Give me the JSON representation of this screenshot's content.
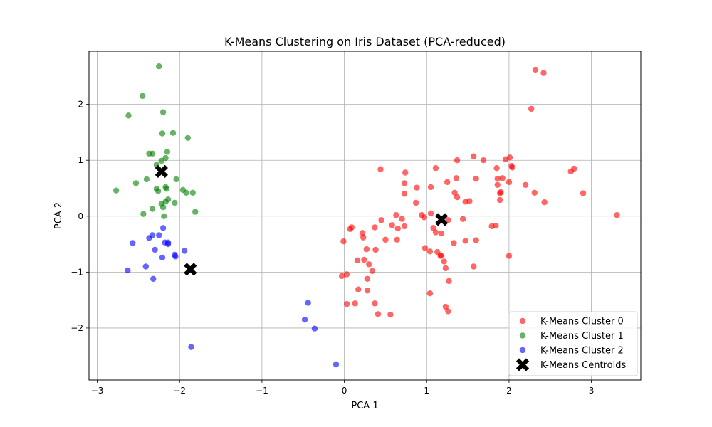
{
  "chart_data": {
    "type": "scatter",
    "title": "K-Means Clustering on Iris Dataset (PCA-reduced)",
    "xlabel": "PCA 1",
    "ylabel": "PCA 2",
    "xlim": [
      -3.1,
      3.6
    ],
    "ylim": [
      -2.93,
      2.95
    ],
    "xticks": [
      -3,
      -2,
      -1,
      0,
      1,
      2,
      3
    ],
    "yticks": [
      -2,
      -1,
      0,
      1,
      2
    ],
    "xtick_labels": [
      "−3",
      "−2",
      "−1",
      "0",
      "1",
      "2",
      "3"
    ],
    "ytick_labels": [
      "−2",
      "−1",
      "0",
      "1",
      "2"
    ],
    "grid": true,
    "legend_position": "lower-right",
    "series": [
      {
        "name": "K-Means Cluster 0",
        "color": "#ff0000",
        "marker": "circle",
        "points": [
          [
            2.32,
            2.62
          ],
          [
            2.42,
            2.56
          ],
          [
            2.27,
            1.92
          ],
          [
            1.57,
            1.07
          ],
          [
            1.37,
            1.0
          ],
          [
            1.69,
            1.0
          ],
          [
            1.96,
            1.02
          ],
          [
            2.01,
            1.05
          ],
          [
            2.03,
            0.9
          ],
          [
            2.04,
            0.87
          ],
          [
            0.44,
            0.84
          ],
          [
            0.74,
            0.78
          ],
          [
            1.11,
            0.86
          ],
          [
            1.85,
            0.86
          ],
          [
            2.79,
            0.85
          ],
          [
            2.75,
            0.8
          ],
          [
            1.36,
            0.68
          ],
          [
            1.6,
            0.67
          ],
          [
            1.86,
            0.67
          ],
          [
            1.92,
            0.68
          ],
          [
            1.25,
            0.61
          ],
          [
            2.0,
            0.61
          ],
          [
            0.73,
            0.59
          ],
          [
            1.86,
            0.56
          ],
          [
            2.2,
            0.56
          ],
          [
            0.88,
            0.51
          ],
          [
            1.05,
            0.52
          ],
          [
            0.73,
            0.4
          ],
          [
            1.34,
            0.42
          ],
          [
            1.89,
            0.41
          ],
          [
            1.9,
            0.43
          ],
          [
            2.31,
            0.42
          ],
          [
            2.9,
            0.41
          ],
          [
            1.37,
            0.34
          ],
          [
            0.87,
            0.24
          ],
          [
            1.89,
            0.29
          ],
          [
            1.47,
            0.26
          ],
          [
            1.52,
            0.27
          ],
          [
            2.43,
            0.25
          ],
          [
            0.63,
            0.02
          ],
          [
            0.94,
            0.02
          ],
          [
            1.05,
            0.05
          ],
          [
            0.97,
            -0.02
          ],
          [
            3.31,
            0.02
          ],
          [
            0.45,
            -0.07
          ],
          [
            0.7,
            -0.05
          ],
          [
            1.26,
            -0.07
          ],
          [
            1.44,
            -0.05
          ],
          [
            0.09,
            -0.2
          ],
          [
            0.07,
            -0.23
          ],
          [
            0.37,
            -0.2
          ],
          [
            0.58,
            -0.16
          ],
          [
            0.65,
            -0.22
          ],
          [
            0.73,
            -0.18
          ],
          [
            1.08,
            -0.21
          ],
          [
            1.11,
            -0.29
          ],
          [
            1.18,
            -0.31
          ],
          [
            1.79,
            -0.18
          ],
          [
            1.84,
            -0.17
          ],
          [
            0.22,
            -0.3
          ],
          [
            0.23,
            -0.38
          ],
          [
            0.5,
            -0.42
          ],
          [
            0.64,
            -0.42
          ],
          [
            1.33,
            -0.48
          ],
          [
            1.47,
            -0.44
          ],
          [
            1.6,
            -0.43
          ],
          [
            -0.01,
            -0.45
          ],
          [
            0.27,
            -0.59
          ],
          [
            0.38,
            -0.6
          ],
          [
            0.98,
            -0.57
          ],
          [
            1.04,
            -0.63
          ],
          [
            1.13,
            -0.64
          ],
          [
            1.17,
            -0.7
          ],
          [
            1.17,
            -0.71
          ],
          [
            2.0,
            -0.71
          ],
          [
            0.16,
            -0.79
          ],
          [
            0.24,
            -0.78
          ],
          [
            0.3,
            -0.86
          ],
          [
            1.21,
            -0.81
          ],
          [
            1.57,
            -0.9
          ],
          [
            0.34,
            -0.98
          ],
          [
            1.23,
            -0.93
          ],
          [
            -0.03,
            -1.07
          ],
          [
            0.03,
            -1.04
          ],
          [
            0.28,
            -1.12
          ],
          [
            1.27,
            -1.16
          ],
          [
            0.17,
            -1.31
          ],
          [
            0.28,
            -1.33
          ],
          [
            1.04,
            -1.38
          ],
          [
            0.03,
            -1.57
          ],
          [
            0.13,
            -1.56
          ],
          [
            0.37,
            -1.56
          ],
          [
            1.23,
            -1.62
          ],
          [
            1.26,
            -1.7
          ],
          [
            0.41,
            -1.75
          ],
          [
            0.56,
            -1.76
          ]
        ]
      },
      {
        "name": "K-Means Cluster 1",
        "color": "#008000",
        "marker": "circle",
        "points": [
          [
            -2.25,
            2.68
          ],
          [
            -2.45,
            2.15
          ],
          [
            -2.62,
            1.8
          ],
          [
            -2.2,
            1.86
          ],
          [
            -2.21,
            1.48
          ],
          [
            -2.08,
            1.49
          ],
          [
            -1.9,
            1.4
          ],
          [
            -2.37,
            1.12
          ],
          [
            -2.33,
            1.12
          ],
          [
            -2.15,
            1.15
          ],
          [
            -2.17,
            1.04
          ],
          [
            -2.22,
            0.99
          ],
          [
            -2.28,
            0.92
          ],
          [
            -2.4,
            0.66
          ],
          [
            -2.04,
            0.66
          ],
          [
            -2.53,
            0.59
          ],
          [
            -2.28,
            0.49
          ],
          [
            -2.26,
            0.45
          ],
          [
            -2.17,
            0.52
          ],
          [
            -2.16,
            0.49
          ],
          [
            -2.77,
            0.46
          ],
          [
            -1.96,
            0.47
          ],
          [
            -1.92,
            0.42
          ],
          [
            -1.84,
            0.42
          ],
          [
            -2.14,
            0.3
          ],
          [
            -2.17,
            0.26
          ],
          [
            -2.06,
            0.24
          ],
          [
            -2.22,
            0.22
          ],
          [
            -2.33,
            0.13
          ],
          [
            -2.2,
            0.16
          ],
          [
            -2.44,
            0.04
          ],
          [
            -2.19,
            0.0
          ],
          [
            -1.81,
            0.08
          ]
        ]
      },
      {
        "name": "K-Means Cluster 2",
        "color": "#0000ff",
        "marker": "circle",
        "points": [
          [
            -2.2,
            -0.21
          ],
          [
            -2.33,
            -0.34
          ],
          [
            -2.37,
            -0.39
          ],
          [
            -2.25,
            -0.34
          ],
          [
            -2.57,
            -0.48
          ],
          [
            -2.18,
            -0.47
          ],
          [
            -2.14,
            -0.47
          ],
          [
            -2.14,
            -0.5
          ],
          [
            -2.3,
            -0.6
          ],
          [
            -1.94,
            -0.62
          ],
          [
            -2.06,
            -0.69
          ],
          [
            -2.05,
            -0.72
          ],
          [
            -2.21,
            -0.74
          ],
          [
            -2.41,
            -0.9
          ],
          [
            -2.63,
            -0.97
          ],
          [
            -2.32,
            -1.12
          ],
          [
            -1.86,
            -2.34
          ],
          [
            -0.44,
            -1.55
          ],
          [
            -0.48,
            -1.85
          ],
          [
            -0.36,
            -2.01
          ],
          [
            -0.1,
            -2.65
          ]
        ]
      },
      {
        "name": "K-Means Centroids",
        "color": "#000000",
        "marker": "x",
        "points": [
          [
            -2.22,
            0.8
          ],
          [
            -1.87,
            -0.95
          ],
          [
            1.18,
            -0.06
          ]
        ]
      }
    ]
  }
}
